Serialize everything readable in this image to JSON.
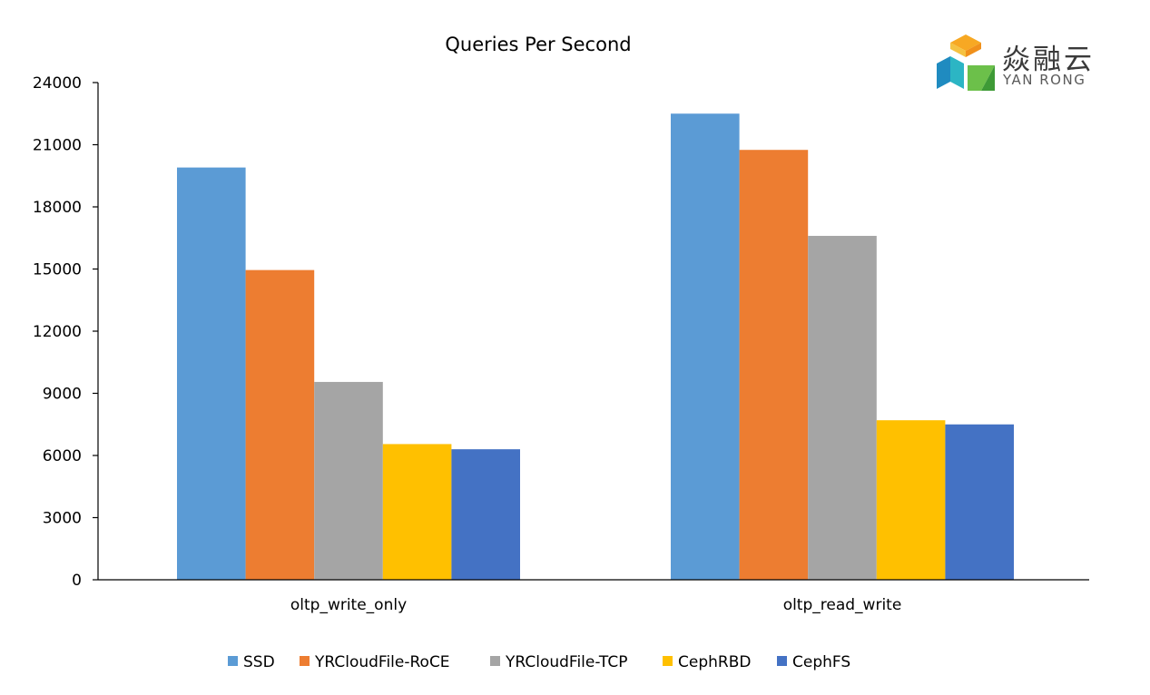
{
  "logo": {
    "name_cn": "焱融云",
    "name_en": "YAN RONG"
  },
  "chart_data": {
    "type": "bar",
    "title": "Queries Per Second",
    "xlabel": "",
    "ylabel": "",
    "categories": [
      "oltp_write_only",
      "oltp_read_write"
    ],
    "ylim": [
      0,
      24000
    ],
    "yticks": [
      0,
      3000,
      6000,
      9000,
      12000,
      15000,
      18000,
      21000,
      24000
    ],
    "grid": false,
    "legend_position": "bottom",
    "series": [
      {
        "name": "SSD",
        "color": "#5B9BD5",
        "values": [
          19900,
          22500
        ]
      },
      {
        "name": "YRCloudFile-RoCE",
        "color": "#ED7D31",
        "values": [
          14950,
          20750
        ]
      },
      {
        "name": "YRCloudFile-TCP",
        "color": "#A5A5A5",
        "values": [
          9550,
          16600
        ]
      },
      {
        "name": "CephRBD",
        "color": "#FFC000",
        "values": [
          6550,
          7700
        ]
      },
      {
        "name": "CephFS",
        "color": "#4472C4",
        "values": [
          6300,
          7500
        ]
      }
    ]
  }
}
